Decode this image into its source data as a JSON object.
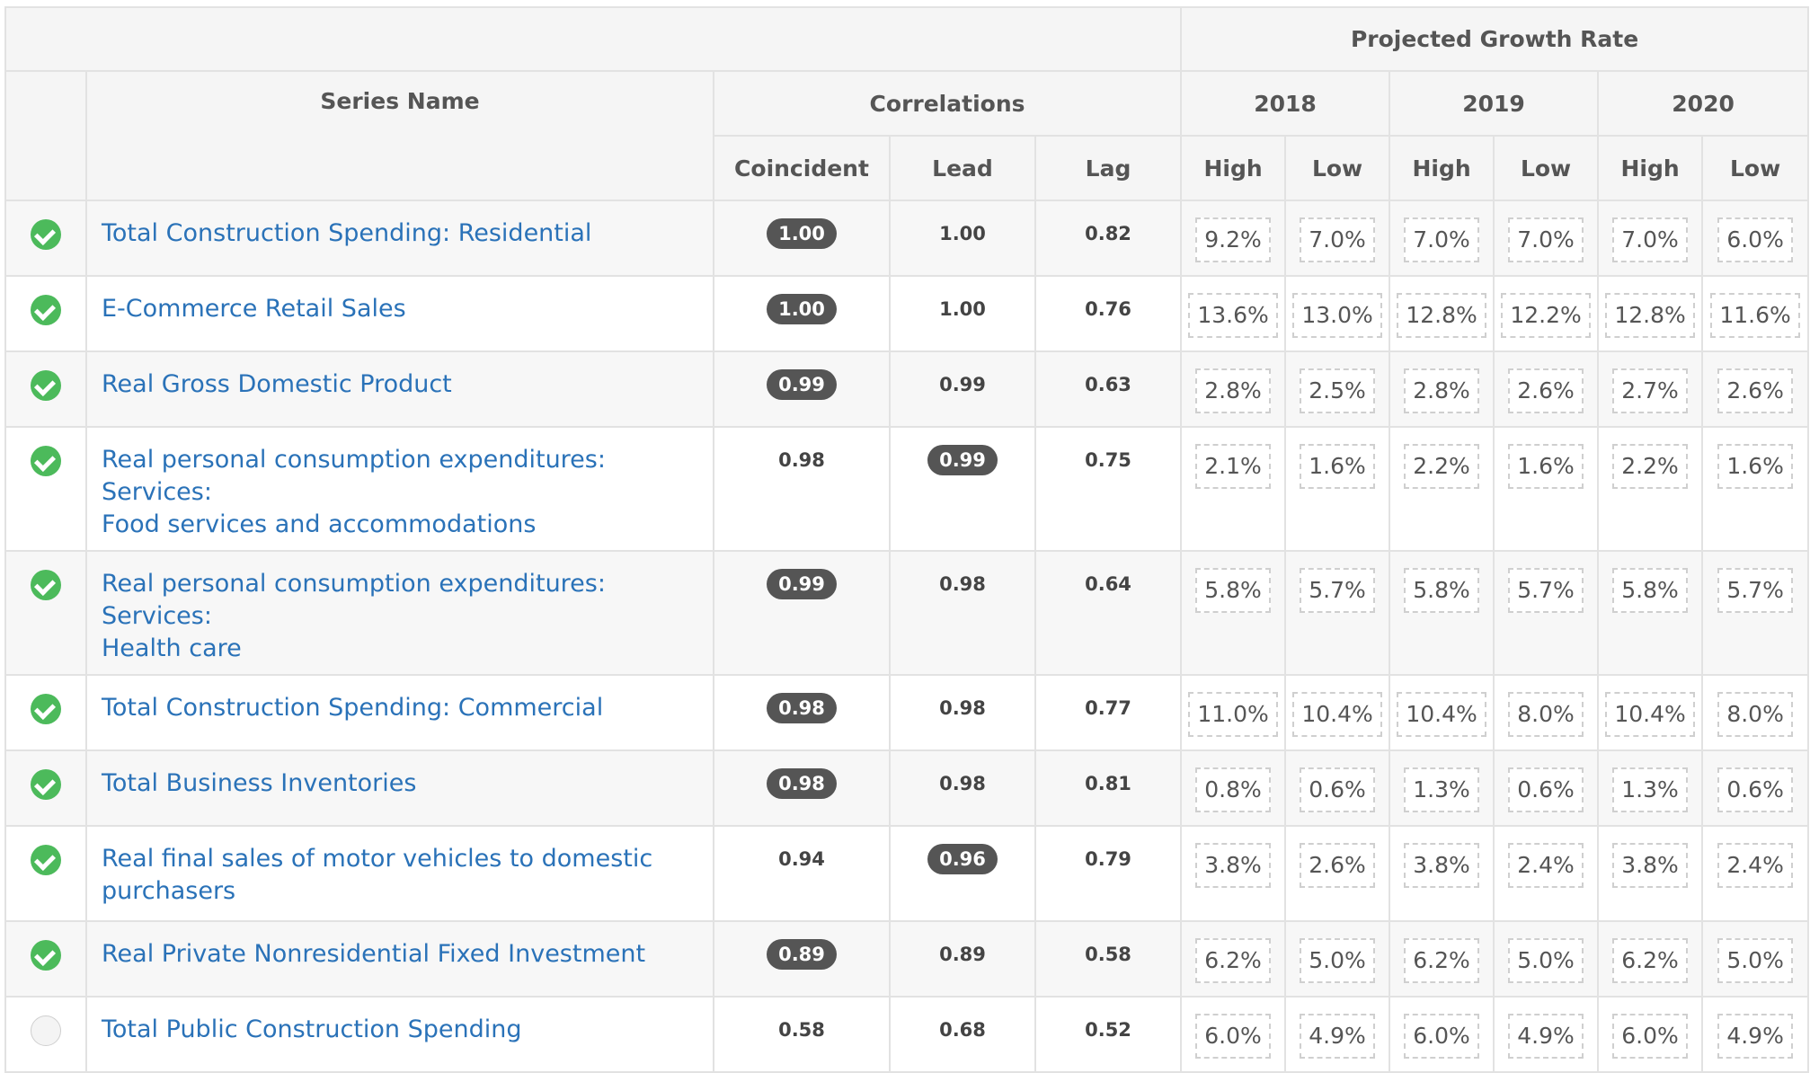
{
  "header": {
    "projected_growth_rate": "Projected Growth Rate",
    "series_name": "Series Name",
    "correlations": "Correlations",
    "years": [
      "2018",
      "2019",
      "2020"
    ],
    "correlation_cols": [
      "Coincident",
      "Lead",
      "Lag"
    ],
    "high_label": "High",
    "low_label": "Low"
  },
  "rows": [
    {
      "checked": true,
      "name_lines": [
        "Total Construction Spending: Residential",
        ""
      ],
      "coincident": "1.00",
      "lead": "1.00",
      "lag": "0.82",
      "highlight": "coincident",
      "rates": [
        "9.2%",
        "7.0%",
        "7.0%",
        "7.0%",
        "7.0%",
        "6.0%"
      ]
    },
    {
      "checked": true,
      "name_lines": [
        "E-Commerce Retail Sales",
        ""
      ],
      "coincident": "1.00",
      "lead": "1.00",
      "lag": "0.76",
      "highlight": "coincident",
      "rates": [
        "13.6%",
        "13.0%",
        "12.8%",
        "12.2%",
        "12.8%",
        "11.6%"
      ]
    },
    {
      "checked": true,
      "name_lines": [
        "Real Gross Domestic Product",
        ""
      ],
      "coincident": "0.99",
      "lead": "0.99",
      "lag": "0.63",
      "highlight": "coincident",
      "rates": [
        "2.8%",
        "2.5%",
        "2.8%",
        "2.6%",
        "2.7%",
        "2.6%"
      ]
    },
    {
      "checked": true,
      "name_lines": [
        "Real personal consumption expenditures: Services:",
        "Food services and accommodations"
      ],
      "coincident": "0.98",
      "lead": "0.99",
      "lag": "0.75",
      "highlight": "lead",
      "rates": [
        "2.1%",
        "1.6%",
        "2.2%",
        "1.6%",
        "2.2%",
        "1.6%"
      ]
    },
    {
      "checked": true,
      "name_lines": [
        "Real personal consumption expenditures: Services:",
        "Health care"
      ],
      "coincident": "0.99",
      "lead": "0.98",
      "lag": "0.64",
      "highlight": "coincident",
      "rates": [
        "5.8%",
        "5.7%",
        "5.8%",
        "5.7%",
        "5.8%",
        "5.7%"
      ]
    },
    {
      "checked": true,
      "name_lines": [
        "Total Construction Spending: Commercial",
        ""
      ],
      "coincident": "0.98",
      "lead": "0.98",
      "lag": "0.77",
      "highlight": "coincident",
      "rates": [
        "11.0%",
        "10.4%",
        "10.4%",
        "8.0%",
        "10.4%",
        "8.0%"
      ]
    },
    {
      "checked": true,
      "name_lines": [
        "Total Business Inventories",
        ""
      ],
      "coincident": "0.98",
      "lead": "0.98",
      "lag": "0.81",
      "highlight": "coincident",
      "rates": [
        "0.8%",
        "0.6%",
        "1.3%",
        "0.6%",
        "1.3%",
        "0.6%"
      ]
    },
    {
      "checked": true,
      "name_lines": [
        "Real final sales of motor vehicles to domestic",
        "purchasers"
      ],
      "coincident": "0.94",
      "lead": "0.96",
      "lag": "0.79",
      "highlight": "lead",
      "rates": [
        "3.8%",
        "2.6%",
        "3.8%",
        "2.4%",
        "3.8%",
        "2.4%"
      ]
    },
    {
      "checked": true,
      "name_lines": [
        "Real Private Nonresidential Fixed Investment",
        ""
      ],
      "coincident": "0.89",
      "lead": "0.89",
      "lag": "0.58",
      "highlight": "coincident",
      "rates": [
        "6.2%",
        "5.0%",
        "6.2%",
        "5.0%",
        "6.2%",
        "5.0%"
      ]
    },
    {
      "checked": false,
      "name_lines": [
        "Total Public Construction Spending",
        ""
      ],
      "coincident": "0.58",
      "lead": "0.68",
      "lag": "0.52",
      "highlight": "none",
      "rates": [
        "6.0%",
        "4.9%",
        "6.0%",
        "4.9%",
        "6.0%",
        "4.9%"
      ]
    }
  ]
}
